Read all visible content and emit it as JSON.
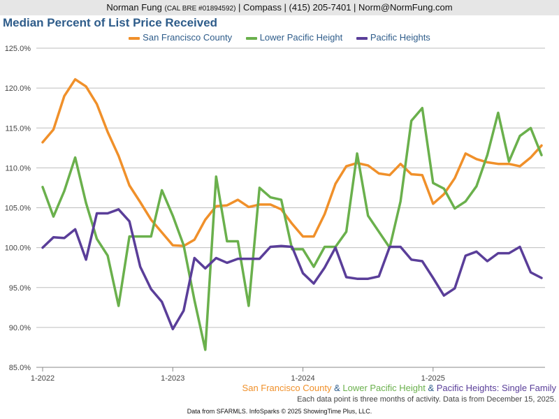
{
  "header": {
    "name": "Norman Fung",
    "license": "(CAL BRE #01894592)",
    "rest": "| Compass | (415) 205-7401 | Norm@NormFung.com"
  },
  "chart_data": {
    "type": "line",
    "title": "Median Percent of List Price Received",
    "xlabel": "",
    "ylabel": "",
    "ylim": [
      85,
      125
    ],
    "grid": true,
    "legend_position": "top",
    "yticks": [
      "125.0%",
      "120.0%",
      "115.0%",
      "110.0%",
      "105.0%",
      "100.0%",
      "95.0%",
      "90.0%",
      "85.0%"
    ],
    "xticks": [
      {
        "label": "1-2022",
        "index": 0
      },
      {
        "label": "1-2023",
        "index": 12
      },
      {
        "label": "1-2024",
        "index": 24
      },
      {
        "label": "1-2025",
        "index": 36
      }
    ],
    "x": [
      "1-2022",
      "2-2022",
      "3-2022",
      "4-2022",
      "5-2022",
      "6-2022",
      "7-2022",
      "8-2022",
      "9-2022",
      "10-2022",
      "11-2022",
      "12-2022",
      "1-2023",
      "2-2023",
      "3-2023",
      "4-2023",
      "5-2023",
      "6-2023",
      "7-2023",
      "8-2023",
      "9-2023",
      "10-2023",
      "11-2023",
      "12-2023",
      "1-2024",
      "2-2024",
      "3-2024",
      "4-2024",
      "5-2024",
      "6-2024",
      "7-2024",
      "8-2024",
      "9-2024",
      "10-2024",
      "11-2024",
      "12-2024",
      "1-2025",
      "2-2025",
      "3-2025",
      "4-2025",
      "5-2025",
      "6-2025",
      "7-2025",
      "8-2025",
      "9-2025",
      "10-2025",
      "11-2025"
    ],
    "series": [
      {
        "name": "San Francisco County",
        "color": "#f0902a",
        "values": [
          113.2,
          114.8,
          119.0,
          121.1,
          120.2,
          118.0,
          114.5,
          111.5,
          107.8,
          105.7,
          103.5,
          101.9,
          100.3,
          100.2,
          101.0,
          103.5,
          105.2,
          105.3,
          106.0,
          105.1,
          105.4,
          105.4,
          104.8,
          103.0,
          101.4,
          101.4,
          104.2,
          108.0,
          110.2,
          110.6,
          110.3,
          109.3,
          109.1,
          110.5,
          109.2,
          109.1,
          105.5,
          106.7,
          108.7,
          111.8,
          111.1,
          110.7,
          110.5,
          110.5,
          110.2,
          111.3,
          112.8
        ]
      },
      {
        "name": "Lower Pacific Height",
        "color": "#6ab04c",
        "values": [
          107.6,
          103.9,
          107.1,
          111.3,
          105.6,
          101.1,
          99.0,
          92.7,
          101.4,
          101.4,
          101.4,
          107.2,
          104.0,
          100.3,
          93.4,
          87.2,
          108.9,
          100.8,
          100.8,
          92.7,
          107.5,
          106.3,
          106.0,
          99.8,
          99.8,
          97.6,
          100.1,
          100.1,
          102.0,
          111.8,
          104.0,
          102.0,
          100.0,
          105.8,
          115.9,
          117.5,
          108.1,
          107.4,
          104.9,
          105.8,
          107.7,
          111.6,
          116.9,
          110.8,
          114.0,
          115.0,
          111.6
        ]
      },
      {
        "name": "Pacific Heights",
        "color": "#5a3e99",
        "values": [
          100.0,
          101.3,
          101.2,
          102.3,
          98.5,
          104.3,
          104.3,
          104.8,
          103.3,
          97.6,
          94.8,
          93.2,
          89.8,
          92.1,
          98.7,
          97.4,
          98.7,
          98.1,
          98.6,
          98.6,
          98.6,
          100.1,
          100.2,
          100.1,
          96.8,
          95.5,
          97.5,
          100.0,
          96.3,
          96.1,
          96.1,
          96.4,
          100.1,
          100.1,
          98.5,
          98.3,
          96.2,
          94.0,
          94.9,
          99.0,
          99.5,
          98.3,
          99.3,
          99.3,
          100.1,
          96.9,
          96.2
        ]
      }
    ],
    "caption": {
      "sf": "San Francisco County",
      "amp1": " & ",
      "lph": "Lower Pacific Height",
      "amp2": " & ",
      "ph": "Pacific Heights",
      "suffix": ": Single Family"
    },
    "note": "Each data point is three months of activity. Data is from December 15, 2025.",
    "source": "Data from SFARMLS. InfoSparks © 2025 ShowingTime Plus, LLC."
  }
}
